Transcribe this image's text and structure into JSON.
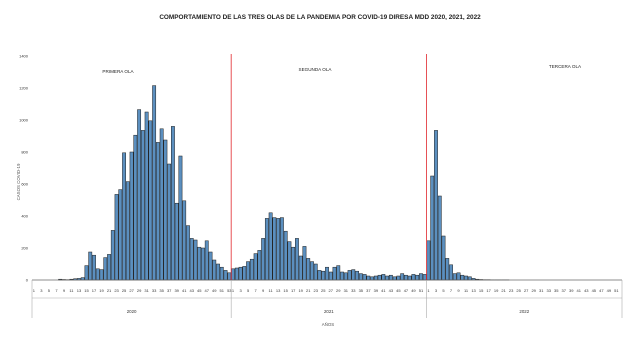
{
  "chart_data": {
    "type": "bar",
    "title": "COMPORTAMIENTO DE LAS TRES OLAS DE LA PANDEMIA POR COVID-19 DIRESA MDD 2020, 2021, 2022",
    "xlabel": "AÑOS",
    "ylabel": "CASOS COVID-19",
    "ylim": [
      0,
      1400
    ],
    "yticks": [
      0,
      200,
      400,
      600,
      800,
      1000,
      1200,
      1400
    ],
    "grid": false,
    "bar_color": "#5b8fbf",
    "bar_edge_color": "#1f1f1f",
    "divider_color": "#e0262b",
    "wave_labels": [
      "PRIMERA OLA",
      "SEGUNDA OLA",
      "TERCERA OLA"
    ],
    "groups": [
      {
        "year": "2020",
        "weeks": [
          1,
          2,
          3,
          4,
          5,
          6,
          7,
          8,
          9,
          10,
          11,
          12,
          13,
          14,
          15,
          16,
          17,
          18,
          19,
          20,
          21,
          22,
          23,
          24,
          25,
          26,
          27,
          28,
          29,
          30,
          31,
          32,
          33,
          34,
          35,
          36,
          37,
          38,
          39,
          40,
          41,
          42,
          43,
          44,
          45,
          46,
          47,
          48,
          49,
          50,
          51,
          52,
          53
        ],
        "values": [
          0,
          0,
          0,
          0,
          0,
          0,
          0,
          5,
          3,
          2,
          5,
          8,
          10,
          15,
          90,
          175,
          155,
          70,
          65,
          140,
          160,
          310,
          535,
          565,
          795,
          615,
          800,
          905,
          1065,
          935,
          1050,
          995,
          1215,
          860,
          945,
          875,
          725,
          960,
          480,
          775,
          495,
          340,
          260,
          250,
          205,
          200,
          245,
          175,
          125,
          100,
          80,
          60,
          45
        ]
      },
      {
        "year": "2021",
        "weeks": [
          1,
          2,
          3,
          4,
          5,
          6,
          7,
          8,
          9,
          10,
          11,
          12,
          13,
          14,
          15,
          16,
          17,
          18,
          19,
          20,
          21,
          22,
          23,
          24,
          25,
          26,
          27,
          28,
          29,
          30,
          31,
          32,
          33,
          34,
          35,
          36,
          37,
          38,
          39,
          40,
          41,
          42,
          43,
          44,
          45,
          46,
          47,
          48,
          49,
          50,
          51,
          52
        ],
        "values": [
          70,
          75,
          80,
          85,
          115,
          130,
          165,
          185,
          260,
          385,
          420,
          390,
          385,
          390,
          305,
          240,
          205,
          260,
          150,
          210,
          135,
          115,
          100,
          60,
          55,
          80,
          50,
          80,
          90,
          50,
          45,
          60,
          65,
          55,
          40,
          35,
          25,
          20,
          25,
          30,
          35,
          25,
          30,
          20,
          25,
          40,
          30,
          25,
          35,
          30,
          40,
          35
        ]
      },
      {
        "year": "2022",
        "weeks": [
          1,
          2,
          3,
          4,
          5,
          6,
          7,
          8,
          9,
          10,
          11,
          12,
          13,
          14,
          15,
          16,
          17,
          18,
          19,
          20,
          21,
          22,
          23,
          24,
          25,
          26,
          27,
          28,
          29,
          30,
          31,
          32,
          33,
          34,
          35,
          36,
          37,
          38,
          39,
          40,
          41,
          42,
          43,
          44,
          45,
          46,
          47,
          48,
          49,
          50,
          51,
          52
        ],
        "values": [
          245,
          650,
          935,
          525,
          275,
          135,
          95,
          40,
          45,
          30,
          25,
          20,
          10,
          5,
          3,
          2,
          2,
          1,
          1,
          1,
          1,
          1,
          0,
          0,
          0,
          0,
          0,
          0,
          0,
          0,
          0,
          0,
          0,
          0,
          0,
          0,
          0,
          0,
          0,
          0,
          0,
          0,
          0,
          0,
          0,
          0,
          0,
          0,
          0,
          0,
          0,
          0
        ]
      }
    ]
  }
}
